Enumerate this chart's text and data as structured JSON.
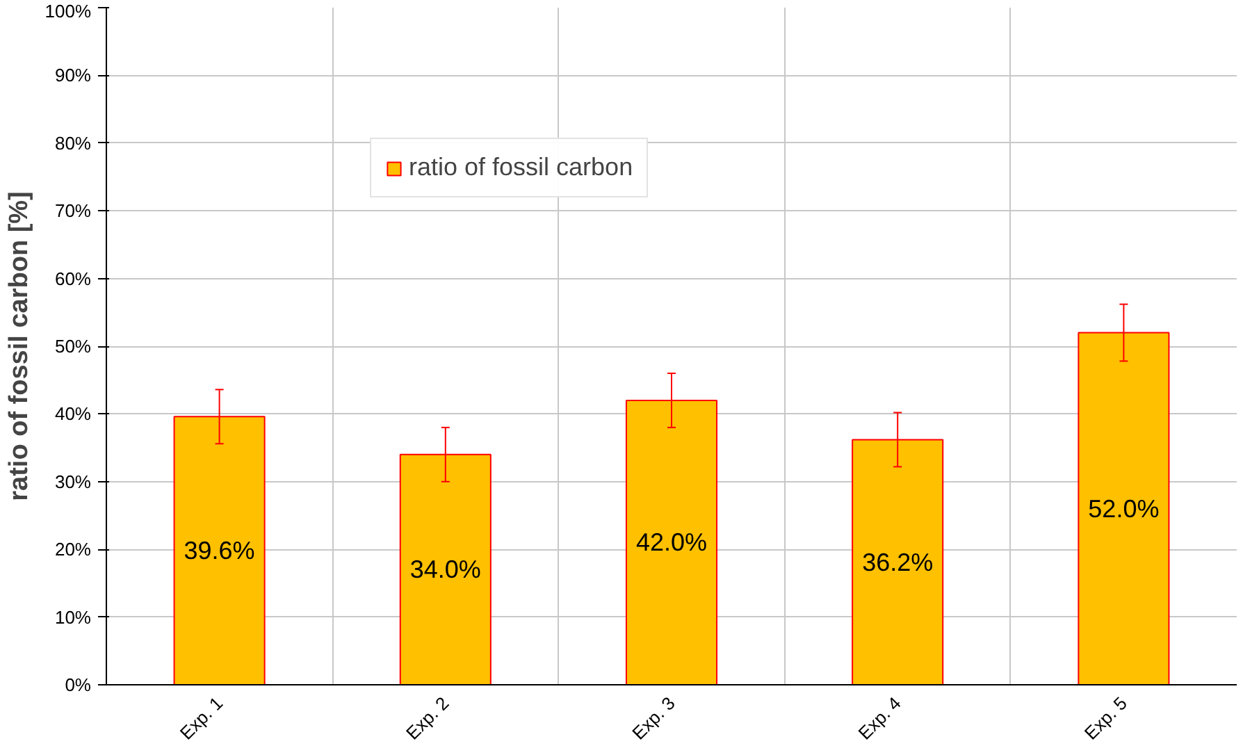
{
  "chart_data": {
    "type": "bar",
    "ylabel": "ratio of fossil carbon [%]",
    "categories": [
      "Exp. 1",
      "Exp. 2",
      "Exp. 3",
      "Exp. 4",
      "Exp. 5"
    ],
    "series": [
      {
        "name": "ratio of fossil carbon",
        "color": "#ffc000",
        "values": [
          39.6,
          34.0,
          42.0,
          36.2,
          52.0
        ],
        "errors": [
          4,
          4,
          4,
          4,
          4.2
        ],
        "value_labels": [
          "39.6%",
          "34.0%",
          "42.0%",
          "36.2%",
          "52.0%"
        ]
      }
    ],
    "ylim": [
      0,
      100
    ],
    "yticks": [
      {
        "value": 0,
        "label": "0%"
      },
      {
        "value": 10,
        "label": "10%"
      },
      {
        "value": 20,
        "label": "20%"
      },
      {
        "value": 30,
        "label": "30%"
      },
      {
        "value": 40,
        "label": "40%"
      },
      {
        "value": 50,
        "label": "50%"
      },
      {
        "value": 60,
        "label": "60%"
      },
      {
        "value": 70,
        "label": "70%"
      },
      {
        "value": 80,
        "label": "80%"
      },
      {
        "value": 90,
        "label": "90%"
      },
      {
        "value": 100,
        "label": "100%"
      }
    ],
    "grid": true,
    "legend": "top"
  }
}
